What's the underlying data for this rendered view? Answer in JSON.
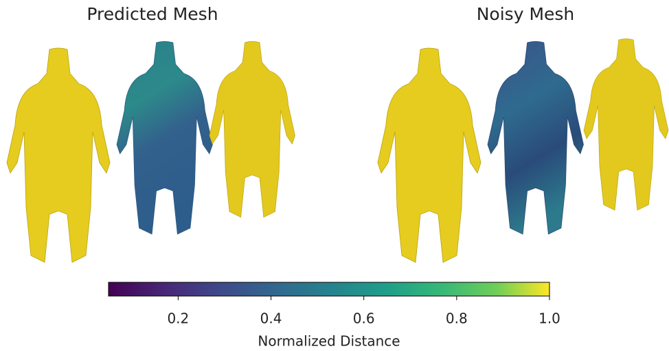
{
  "panels": [
    {
      "title": "Predicted Mesh"
    },
    {
      "title": "Noisy Mesh"
    }
  ],
  "colorbar": {
    "label": "Normalized Distance",
    "lim": [
      0.05,
      1.0
    ],
    "ticks": [
      0.2,
      0.4,
      0.6,
      0.8,
      {
        "value": 1.0,
        "label": "1.0"
      }
    ]
  }
}
